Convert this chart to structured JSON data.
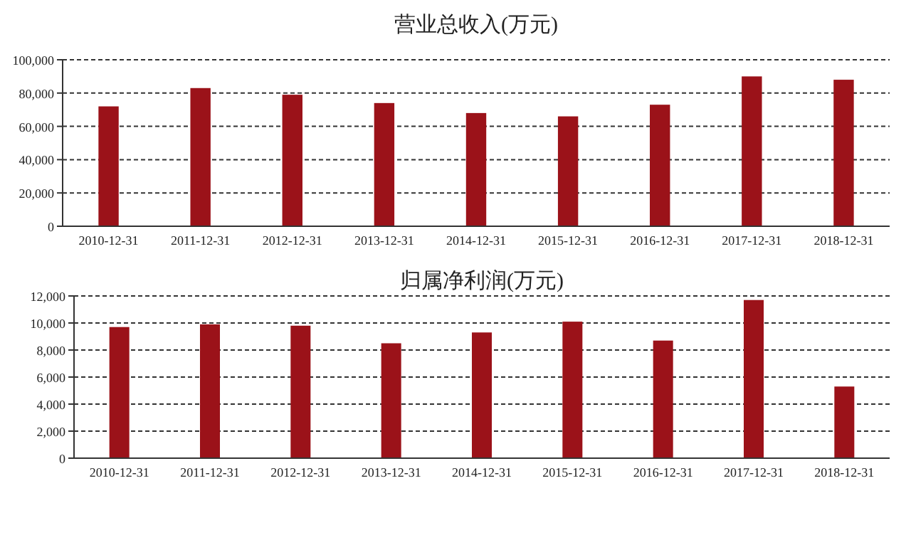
{
  "chart_data": [
    {
      "type": "bar",
      "title": "营业总收入(万元)",
      "categories": [
        "2010-12-31",
        "2011-12-31",
        "2012-12-31",
        "2013-12-31",
        "2014-12-31",
        "2015-12-31",
        "2016-12-31",
        "2017-12-31",
        "2018-12-31"
      ],
      "values": [
        72000,
        83000,
        79000,
        74000,
        68000,
        66000,
        73000,
        90000,
        88000
      ],
      "color": "#9b1219",
      "ylim": [
        0,
        100000
      ],
      "yticks": [
        0,
        {
          "value": 20000,
          "label": "20,000"
        },
        {
          "value": 40000,
          "label": "40,000"
        },
        {
          "value": 60000,
          "label": "60,000"
        },
        {
          "value": 80000,
          "label": "80,000"
        },
        {
          "value": 100000,
          "label": "100,000"
        }
      ],
      "grid": "y"
    },
    {
      "type": "bar",
      "title": "归属净利润(万元)",
      "categories": [
        "2010-12-31",
        "2011-12-31",
        "2012-12-31",
        "2013-12-31",
        "2014-12-31",
        "2015-12-31",
        "2016-12-31",
        "2017-12-31",
        "2018-12-31"
      ],
      "values": [
        9700,
        9900,
        9800,
        8500,
        9300,
        10100,
        8700,
        11700,
        5300
      ],
      "color": "#9b1219",
      "ylim": [
        0,
        12000
      ],
      "yticks": [
        0,
        {
          "value": 2000,
          "label": "2,000"
        },
        {
          "value": 4000,
          "label": "4,000"
        },
        {
          "value": 6000,
          "label": "6,000"
        },
        {
          "value": 8000,
          "label": "8,000"
        },
        {
          "value": 10000,
          "label": "10,000"
        },
        {
          "value": 12000,
          "label": "12,000"
        }
      ],
      "grid": "y"
    }
  ]
}
